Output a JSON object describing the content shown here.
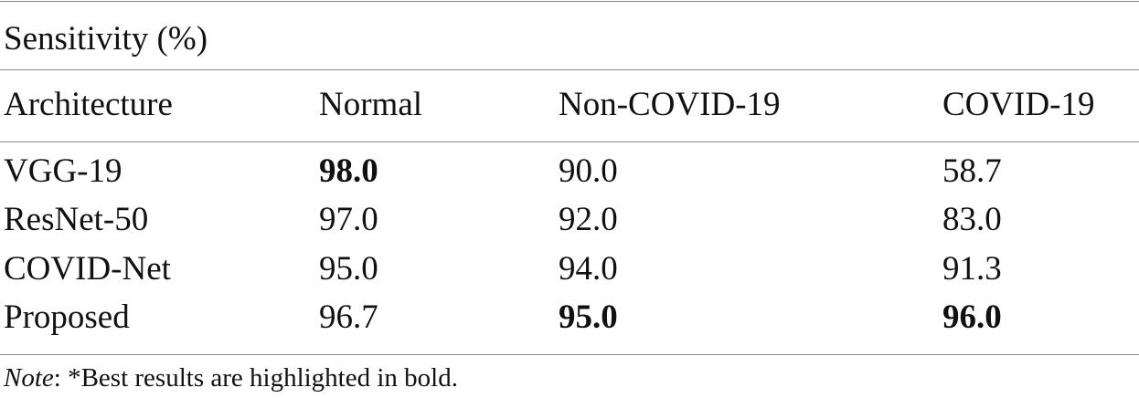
{
  "table": {
    "caption": "Sensitivity (%)",
    "header": [
      "Architecture",
      "Normal",
      "Non-COVID-19",
      "COVID-19"
    ],
    "rows": [
      [
        "VGG-19",
        {
          "text": "98.0",
          "bold": true
        },
        "90.0",
        "58.7"
      ],
      [
        "ResNet-50",
        "97.0",
        "92.0",
        "83.0"
      ],
      [
        "COVID-Net",
        "95.0",
        "94.0",
        "91.3"
      ],
      [
        "Proposed",
        "96.7",
        {
          "text": "95.0",
          "bold": true
        },
        {
          "text": "96.0",
          "bold": true
        }
      ]
    ]
  },
  "note": {
    "label": "Note",
    "text": ": *Best results are highlighted in bold."
  }
}
